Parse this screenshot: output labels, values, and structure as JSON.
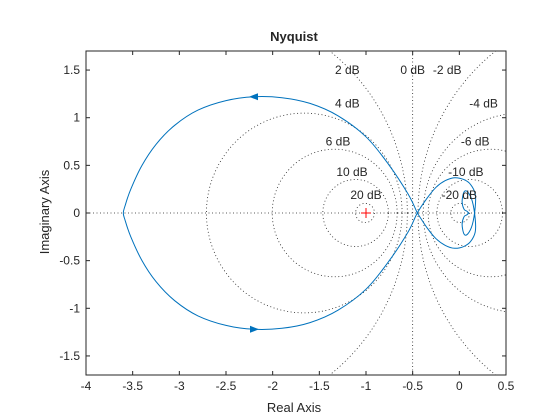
{
  "chart_data": {
    "type": "line",
    "title": "Nyquist",
    "xlabel": "Real Axis",
    "ylabel": "Imaginary Axis",
    "xlim": [
      -4,
      0.5
    ],
    "ylim": [
      -1.7,
      1.7
    ],
    "xticks": [
      -4,
      -3.5,
      -3,
      -2.5,
      -2,
      -1.5,
      -1,
      -0.5,
      0,
      0.5
    ],
    "xtick_labels": [
      "-4",
      "-3.5",
      "-3",
      "-2.5",
      "-2",
      "-1.5",
      "-1",
      "-0.5",
      "0",
      "0.5"
    ],
    "yticks": [
      -1.5,
      -1,
      -0.5,
      0,
      0.5,
      1,
      1.5
    ],
    "ytick_labels": [
      "-1.5",
      "-1",
      "-0.5",
      "0",
      "0.5",
      "1",
      "1.5"
    ],
    "critical_point": {
      "x": -1,
      "y": 0,
      "marker": "+",
      "color": "#ff0000"
    },
    "line_color": "#0072bd",
    "grid_color": "#262626",
    "mcircles_db": [
      {
        "db": 2,
        "label": "2 dB",
        "label_x": -1.2,
        "label_y": 1.5
      },
      {
        "db": 0,
        "label": "0 dB",
        "label_x": -0.5,
        "label_y": 1.5
      },
      {
        "db": -2,
        "label": "-2 dB",
        "label_x": -0.13,
        "label_y": 1.5
      },
      {
        "db": 4,
        "label": "4 dB",
        "label_x": -1.2,
        "label_y": 1.15
      },
      {
        "db": -4,
        "label": "-4 dB",
        "label_x": 0.26,
        "label_y": 1.15
      },
      {
        "db": 6,
        "label": "6 dB",
        "label_x": -1.3,
        "label_y": 0.75
      },
      {
        "db": -6,
        "label": "-6 dB",
        "label_x": 0.17,
        "label_y": 0.75
      },
      {
        "db": 10,
        "label": "10 dB",
        "label_x": -1.15,
        "label_y": 0.43
      },
      {
        "db": -10,
        "label": "-10 dB",
        "label_x": 0.07,
        "label_y": 0.43
      },
      {
        "db": 20,
        "label": "20 dB",
        "label_x": -1.0,
        "label_y": 0.19
      },
      {
        "db": -20,
        "label": "-20 dB",
        "label_x": 0.0,
        "label_y": 0.19
      }
    ],
    "series": [
      {
        "x": [
          -0.45,
          -0.55,
          -0.75,
          -1.0,
          -1.3,
          -1.6,
          -1.9,
          -2.2,
          -2.5,
          -2.8,
          -3.05,
          -3.25,
          -3.4,
          -3.52,
          -3.58,
          -3.6,
          -3.58,
          -3.52,
          -3.4,
          -3.25,
          -3.05,
          -2.8,
          -2.5,
          -2.2,
          -1.9,
          -1.6,
          -1.3,
          -1.0,
          -0.75,
          -0.55,
          -0.45,
          -0.35,
          -0.25,
          -0.15,
          -0.05,
          0.05,
          0.12,
          0.17,
          0.17,
          0.14,
          0.09,
          0.05,
          0.03,
          0.05,
          0.08,
          0.1,
          0.1,
          0.08,
          0.05,
          0.03,
          0.05,
          0.09,
          0.14,
          0.17,
          0.17,
          0.12,
          0.05,
          -0.05,
          -0.15,
          -0.25,
          -0.35,
          -0.45
        ],
        "y": [
          0.0,
          0.2,
          0.5,
          0.8,
          1.02,
          1.15,
          1.21,
          1.22,
          1.18,
          1.08,
          0.92,
          0.72,
          0.5,
          0.25,
          0.08,
          0.0,
          -0.08,
          -0.25,
          -0.5,
          -0.72,
          -0.92,
          -1.08,
          -1.18,
          -1.22,
          -1.21,
          -1.15,
          -1.02,
          -0.8,
          -0.5,
          -0.2,
          0.0,
          0.15,
          0.27,
          0.34,
          0.37,
          0.35,
          0.3,
          0.2,
          0.06,
          -0.12,
          -0.22,
          -0.22,
          -0.12,
          -0.04,
          -0.02,
          0.0,
          0.0,
          0.02,
          0.04,
          0.12,
          0.22,
          0.22,
          0.12,
          -0.06,
          -0.2,
          -0.3,
          -0.35,
          -0.37,
          -0.34,
          -0.27,
          -0.15,
          0.0
        ]
      }
    ],
    "arrows": [
      {
        "x": -2.2,
        "y": 1.22,
        "dir": "left"
      },
      {
        "x": -2.2,
        "y": -1.22,
        "dir": "right"
      }
    ]
  }
}
